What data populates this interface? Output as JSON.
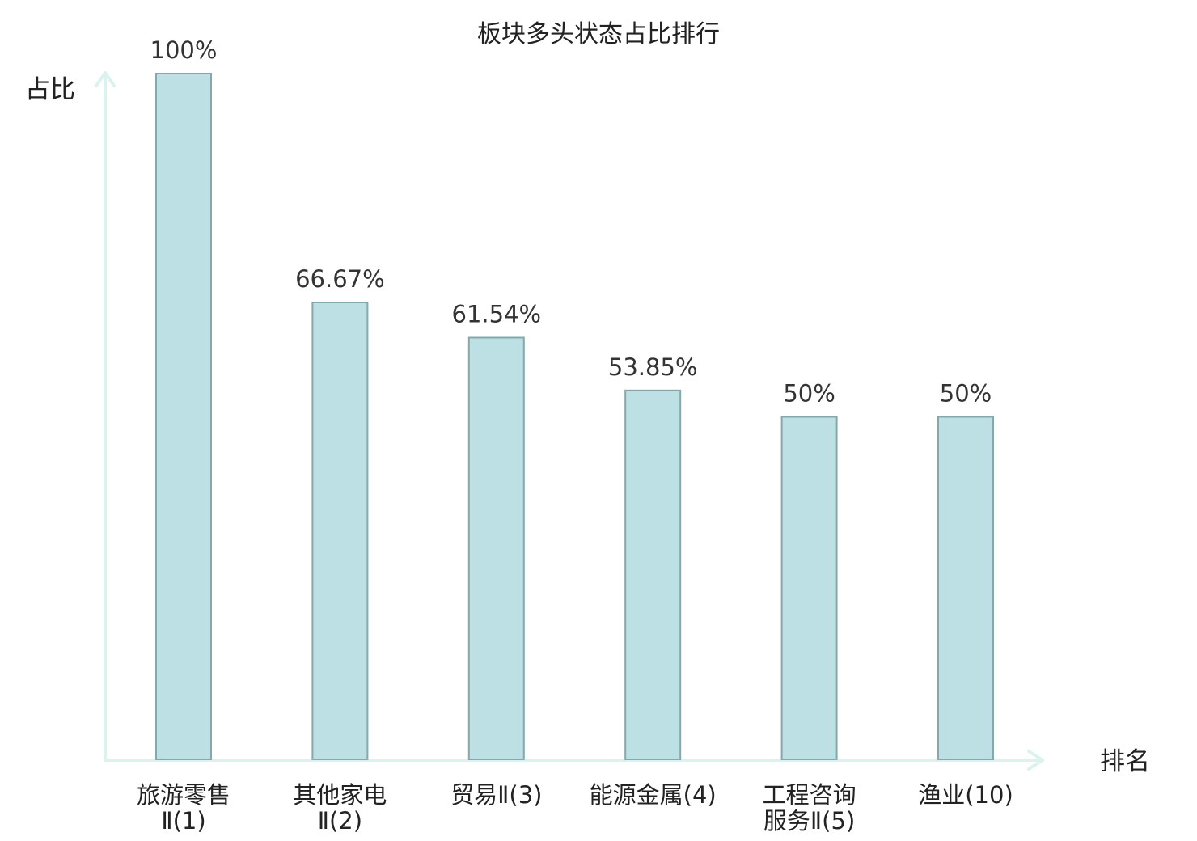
{
  "chart_data": {
    "type": "bar",
    "title": "板块多头状态占比排行",
    "xlabel": "排名",
    "ylabel": "占比",
    "ylim": [
      0,
      100
    ],
    "categories": [
      {
        "name": "旅游零售",
        "suffix": "Ⅱ(1)",
        "highlight": false
      },
      {
        "name": "其他家电",
        "suffix": "Ⅱ(2)",
        "highlight": false
      },
      {
        "name": "贸易",
        "suffix": "Ⅱ(3)",
        "highlight": false
      },
      {
        "name": "能源金属",
        "suffix": "(4)",
        "highlight": false
      },
      {
        "name": "工程咨询",
        "suffix": "服务Ⅱ(5)",
        "highlight": false
      },
      {
        "name": "渔业",
        "suffix": "(10)",
        "highlight": true
      }
    ],
    "values": [
      100,
      66.67,
      61.54,
      53.85,
      50,
      50
    ],
    "value_labels": [
      "100%",
      "66.67%",
      "61.54%",
      "53.85%",
      "50%",
      "50%"
    ],
    "grid": false,
    "legend": "none",
    "colors": {
      "bar_fill": "#bce0e3",
      "bar_stroke": "#86a8ab",
      "axis": "#dcf2ef",
      "text": "#222222",
      "highlight_text": "#e01010"
    }
  }
}
